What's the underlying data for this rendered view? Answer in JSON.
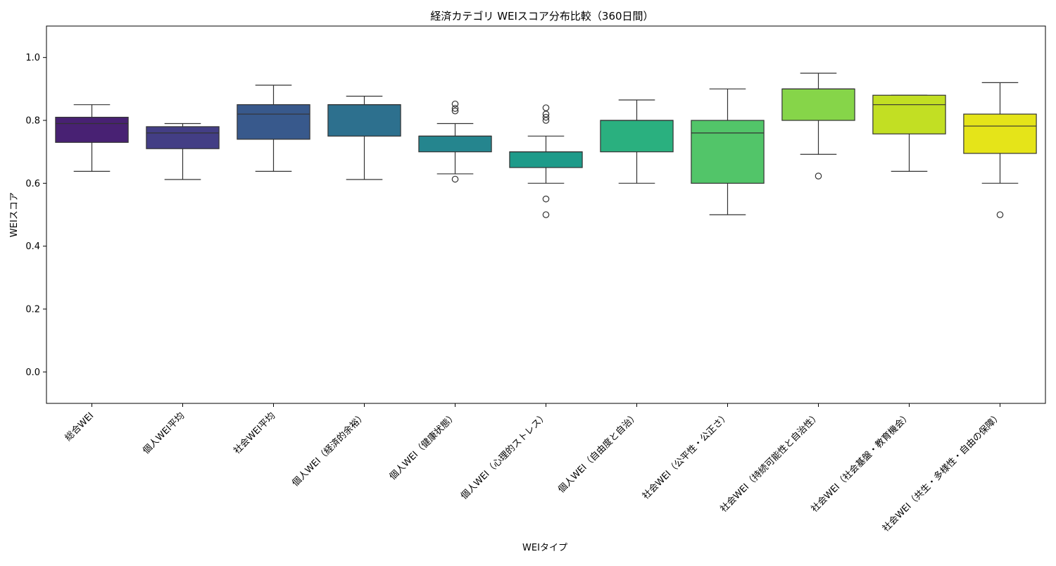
{
  "chart_data": {
    "type": "box",
    "title": "経済カテゴリ WEIスコア分布比較（360日間）",
    "xlabel": "WEIタイプ",
    "ylabel": "WEIスコア",
    "ylim": [
      -0.1,
      1.1
    ],
    "yticks": [
      "0.0",
      "0.2",
      "0.4",
      "0.6",
      "0.8",
      "1.0"
    ],
    "grid": false,
    "legend": "none",
    "categories": [
      "総合WEI",
      "個人WEI平均",
      "社会WEI平均",
      "個人WEI（経済的余裕）",
      "個人WEI（健康状態）",
      "個人WEI（心理的ストレス）",
      "個人WEI（自由度と自治）",
      "社会WEI（公平性・公正さ）",
      "社会WEI（持続可能性と自治性）",
      "社会WEI（社会基盤・教育機会）",
      "社会WEI（共生・多様性・自由の保障）"
    ],
    "boxes": [
      {
        "whisker_low": 0.638,
        "q1": 0.73,
        "median": 0.79,
        "q3": 0.81,
        "whisker_high": 0.85,
        "outliers": [],
        "color": "#482173"
      },
      {
        "whisker_low": 0.612,
        "q1": 0.71,
        "median": 0.76,
        "q3": 0.78,
        "whisker_high": 0.79,
        "outliers": [],
        "color": "#433e85"
      },
      {
        "whisker_low": 0.638,
        "q1": 0.74,
        "median": 0.82,
        "q3": 0.85,
        "whisker_high": 0.912,
        "outliers": [],
        "color": "#38598c"
      },
      {
        "whisker_low": 0.612,
        "q1": 0.75,
        "median": 0.85,
        "q3": 0.85,
        "whisker_high": 0.877,
        "outliers": [],
        "color": "#2d708e"
      },
      {
        "whisker_low": 0.63,
        "q1": 0.7,
        "median": 0.75,
        "q3": 0.75,
        "whisker_high": 0.79,
        "outliers": [
          0.613,
          0.83,
          0.838,
          0.852
        ],
        "color": "#25858e"
      },
      {
        "whisker_low": 0.6,
        "q1": 0.65,
        "median": 0.7,
        "q3": 0.7,
        "whisker_high": 0.75,
        "outliers": [
          0.5,
          0.55,
          0.8,
          0.81,
          0.82,
          0.84
        ],
        "color": "#1e9b8a"
      },
      {
        "whisker_low": 0.6,
        "q1": 0.7,
        "median": 0.8,
        "q3": 0.8,
        "whisker_high": 0.865,
        "outliers": [],
        "color": "#2ab07f"
      },
      {
        "whisker_low": 0.5,
        "q1": 0.6,
        "median": 0.76,
        "q3": 0.8,
        "whisker_high": 0.9,
        "outliers": [],
        "color": "#52c569"
      },
      {
        "whisker_low": 0.692,
        "q1": 0.8,
        "median": 0.9,
        "q3": 0.9,
        "whisker_high": 0.95,
        "outliers": [
          0.623
        ],
        "color": "#86d549"
      },
      {
        "whisker_low": 0.638,
        "q1": 0.757,
        "median": 0.85,
        "q3": 0.88,
        "whisker_high": 0.88,
        "outliers": [],
        "color": "#c2df23"
      },
      {
        "whisker_low": 0.6,
        "q1": 0.695,
        "median": 0.782,
        "q3": 0.82,
        "whisker_high": 0.92,
        "outliers": [
          0.5
        ],
        "color": "#e5e419"
      }
    ]
  }
}
